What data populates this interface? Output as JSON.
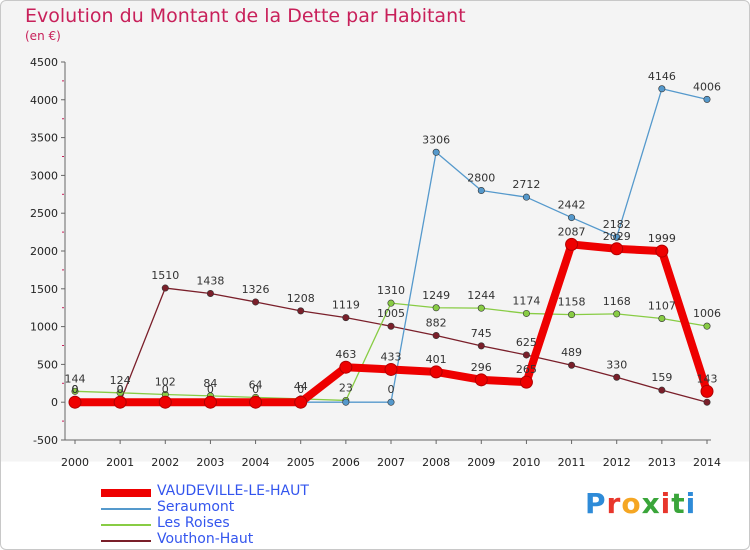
{
  "title": "Evolution du Montant de la Dette par Habitant",
  "subtitle": "(en €)",
  "logo": {
    "text": "Proxiti",
    "colors": [
      "#2e8bd8",
      "#e8362c",
      "#f5a623",
      "#3aa53a",
      "#e8362c",
      "#3aa53a",
      "#2e8bd8"
    ]
  },
  "chart_data": {
    "type": "line",
    "title": "Evolution du Montant de la Dette par Habitant",
    "subtitle": "(en €)",
    "x": [
      "2000",
      "2001",
      "2002",
      "2003",
      "2004",
      "2005",
      "2006",
      "2007",
      "2008",
      "2009",
      "2010",
      "2011",
      "2012",
      "2013",
      "2014"
    ],
    "yticks": [
      "-500",
      "0",
      "500",
      "1000",
      "1500",
      "2000",
      "2500",
      "3000",
      "3500",
      "4000",
      "4500"
    ],
    "ylim": [
      -500,
      4500
    ],
    "grid": false,
    "legend_position": "bottom-left",
    "series": [
      {
        "name": "Vouthon-Haut",
        "color": "#7a1f2a",
        "values": [
          0,
          0,
          1510,
          1438,
          1326,
          1208,
          1119,
          1005,
          882,
          745,
          625,
          489,
          330,
          159,
          0
        ],
        "labels": [
          "0",
          "0",
          "1510",
          "1438",
          "1326",
          "1208",
          "1119",
          "1005",
          "882",
          "745",
          "625",
          "489",
          "330",
          "159",
          ""
        ]
      },
      {
        "name": "Les Roises",
        "color": "#88cc44",
        "values": [
          144,
          124,
          102,
          84,
          64,
          44,
          23,
          1310,
          1249,
          1244,
          1174,
          1158,
          1168,
          1107,
          1006
        ],
        "labels": [
          "144",
          "124",
          "102",
          "84",
          "64",
          "44",
          "23",
          "1310",
          "1249",
          "1244",
          "1174",
          "1158",
          "1168",
          "1107",
          "1006"
        ]
      },
      {
        "name": "Seraumont",
        "color": "#5599cc",
        "values": [
          0,
          0,
          0,
          0,
          0,
          0,
          0,
          0,
          3306,
          2800,
          2712,
          2442,
          2182,
          4146,
          4006
        ],
        "labels": [
          "0",
          "0",
          "0",
          "0",
          "0",
          "0",
          "",
          "0",
          "3306",
          "2800",
          "2712",
          "2442",
          "2182",
          "4146",
          "4006"
        ]
      },
      {
        "name": "VAUDEVILLE-LE-HAUT",
        "color": "#ee0000",
        "values": [
          0,
          0,
          0,
          0,
          0,
          0,
          463,
          433,
          401,
          296,
          265,
          2087,
          2029,
          1999,
          143
        ],
        "labels": [
          "",
          "",
          "",
          "",
          "",
          "",
          "463",
          "433",
          "401",
          "296",
          "265",
          "2087",
          "2029",
          "1999",
          "143"
        ]
      }
    ]
  },
  "legend": [
    {
      "name": "VAUDEVILLE-LE-HAUT",
      "color": "#ee0000"
    },
    {
      "name": "Seraumont",
      "color": "#5599cc"
    },
    {
      "name": "Les Roises",
      "color": "#88cc44"
    },
    {
      "name": "Vouthon-Haut",
      "color": "#7a1f2a"
    }
  ]
}
